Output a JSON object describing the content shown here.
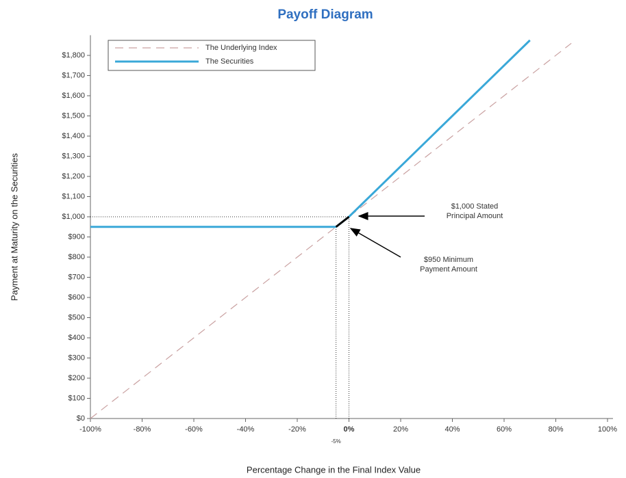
{
  "chart_data": {
    "type": "line",
    "title": "Payoff Diagram",
    "x_label": "Percentage Change in the Final Index Value",
    "y_label": "Payment at Maturity on the Securities",
    "xlim": [
      -100,
      100
    ],
    "ylim": [
      0,
      1900
    ],
    "xticks": [
      {
        "value": -100,
        "label": "-100%"
      },
      {
        "value": -80,
        "label": "-80%"
      },
      {
        "value": -60,
        "label": "-60%"
      },
      {
        "value": -40,
        "label": "-40%"
      },
      {
        "value": -20,
        "label": "-20%"
      },
      {
        "value": 0,
        "label": "0%"
      },
      {
        "value": 20,
        "label": "20%"
      },
      {
        "value": 40,
        "label": "40%"
      },
      {
        "value": 60,
        "label": "60%"
      },
      {
        "value": 80,
        "label": "80%"
      },
      {
        "value": 100,
        "label": "100%"
      }
    ],
    "extra_xtick": {
      "value": -5,
      "label": "-5%"
    },
    "yticks": [
      {
        "value": 0,
        "label": "$0"
      },
      {
        "value": 100,
        "label": "$100"
      },
      {
        "value": 200,
        "label": "$200"
      },
      {
        "value": 300,
        "label": "$300"
      },
      {
        "value": 400,
        "label": "$400"
      },
      {
        "value": 500,
        "label": "$500"
      },
      {
        "value": 600,
        "label": "$600"
      },
      {
        "value": 700,
        "label": "$700"
      },
      {
        "value": 800,
        "label": "$800"
      },
      {
        "value": 900,
        "label": "$900"
      },
      {
        "value": 1000,
        "label": "$1,000"
      },
      {
        "value": 1100,
        "label": "$1,100"
      },
      {
        "value": 1200,
        "label": "$1,200"
      },
      {
        "value": 1300,
        "label": "$1,300"
      },
      {
        "value": 1400,
        "label": "$1,400"
      },
      {
        "value": 1500,
        "label": "$1,500"
      },
      {
        "value": 1600,
        "label": "$1,600"
      },
      {
        "value": 1700,
        "label": "$1,700"
      },
      {
        "value": 1800,
        "label": "$1,800"
      }
    ],
    "series": [
      {
        "name": "The Underlying Index",
        "color": "#c9a0a0",
        "dashed": true,
        "x": [
          -100,
          86
        ],
        "values": [
          0,
          1860
        ]
      },
      {
        "name": "The Securities",
        "color": "#3aa8d8",
        "dashed": false,
        "x": [
          -100,
          -5,
          0,
          70
        ],
        "values": [
          950,
          950,
          1000,
          1875
        ]
      }
    ],
    "connector": {
      "color": "#000000",
      "x": [
        -5,
        0
      ],
      "values": [
        950,
        1000
      ]
    },
    "reference_lines": {
      "y": 1000,
      "x": [
        0,
        -5
      ],
      "x_tops": [
        1000,
        950
      ]
    },
    "annotations": [
      {
        "lines": [
          "$1,000 Stated",
          "Principal Amount"
        ]
      },
      {
        "lines": [
          "$950 Minimum",
          "Payment Amount"
        ]
      }
    ],
    "legend": "upper left"
  }
}
